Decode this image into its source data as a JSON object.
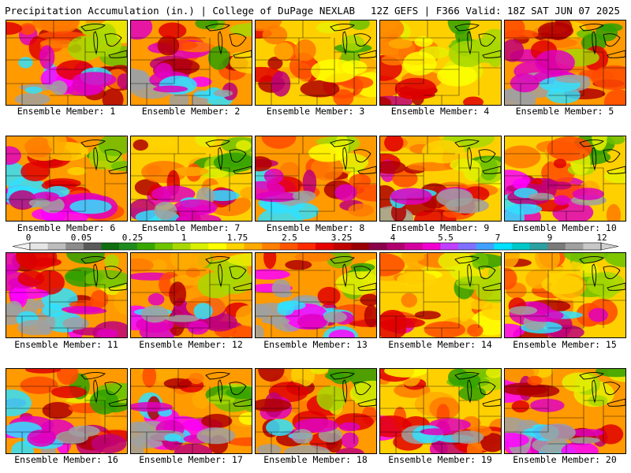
{
  "header": {
    "left_title": "Precipitation Accumulation (in.) | College of DuPage NEXLAB",
    "right_title": "12Z GEFS | F366 Valid: 18Z SAT JUN 07 2025"
  },
  "panels": [
    {
      "label": "Ensemble Member: 1",
      "wet": 0.8
    },
    {
      "label": "Ensemble Member: 2",
      "wet": 0.85
    },
    {
      "label": "Ensemble Member: 3",
      "wet": 0.4
    },
    {
      "label": "Ensemble Member: 4",
      "wet": 0.35
    },
    {
      "label": "Ensemble Member: 5",
      "wet": 0.75
    },
    {
      "label": "Ensemble Member: 6",
      "wet": 0.65
    },
    {
      "label": "Ensemble Member: 7",
      "wet": 0.6
    },
    {
      "label": "Ensemble Member: 8",
      "wet": 0.65
    },
    {
      "label": "Ensemble Member: 9",
      "wet": 0.55
    },
    {
      "label": "Ensemble Member: 10",
      "wet": 0.6
    },
    {
      "label": "Ensemble Member: 11",
      "wet": 0.8
    },
    {
      "label": "Ensemble Member: 12",
      "wet": 0.65
    },
    {
      "label": "Ensemble Member: 13",
      "wet": 0.85
    },
    {
      "label": "Ensemble Member: 14",
      "wet": 0.45
    },
    {
      "label": "Ensemble Member: 15",
      "wet": 0.55
    },
    {
      "label": "Ensemble Member: 16",
      "wet": 0.7
    },
    {
      "label": "Ensemble Member: 17",
      "wet": 0.75
    },
    {
      "label": "Ensemble Member: 18",
      "wet": 0.65
    },
    {
      "label": "Ensemble Member: 19",
      "wet": 0.55
    },
    {
      "label": "Ensemble Member: 20",
      "wet": 0.7
    }
  ],
  "legend": {
    "tick_labels": [
      "0",
      "0.05",
      "0.25",
      "1",
      "1.75",
      "2.5",
      "3.25",
      "4",
      "5.5",
      "7",
      "9",
      "12"
    ],
    "colors": [
      "#e6e6e6",
      "#bdbdbd",
      "#8c8c8c",
      "#5a5a5a",
      "#0f6e0f",
      "#1f8c1f",
      "#38a800",
      "#6fc400",
      "#a8d800",
      "#d9ef00",
      "#ffff00",
      "#ffd400",
      "#ffaa00",
      "#ff8000",
      "#ff5500",
      "#ff2a00",
      "#e60000",
      "#c00000",
      "#9a0000",
      "#8b004a",
      "#b0006e",
      "#d400a0",
      "#f000d0",
      "#c040ff",
      "#8070ff",
      "#40a0ff",
      "#00e0ff",
      "#00c8c8",
      "#2aa0a0",
      "#7a7a7a",
      "#a0a0a0",
      "#c8c8c8"
    ]
  }
}
